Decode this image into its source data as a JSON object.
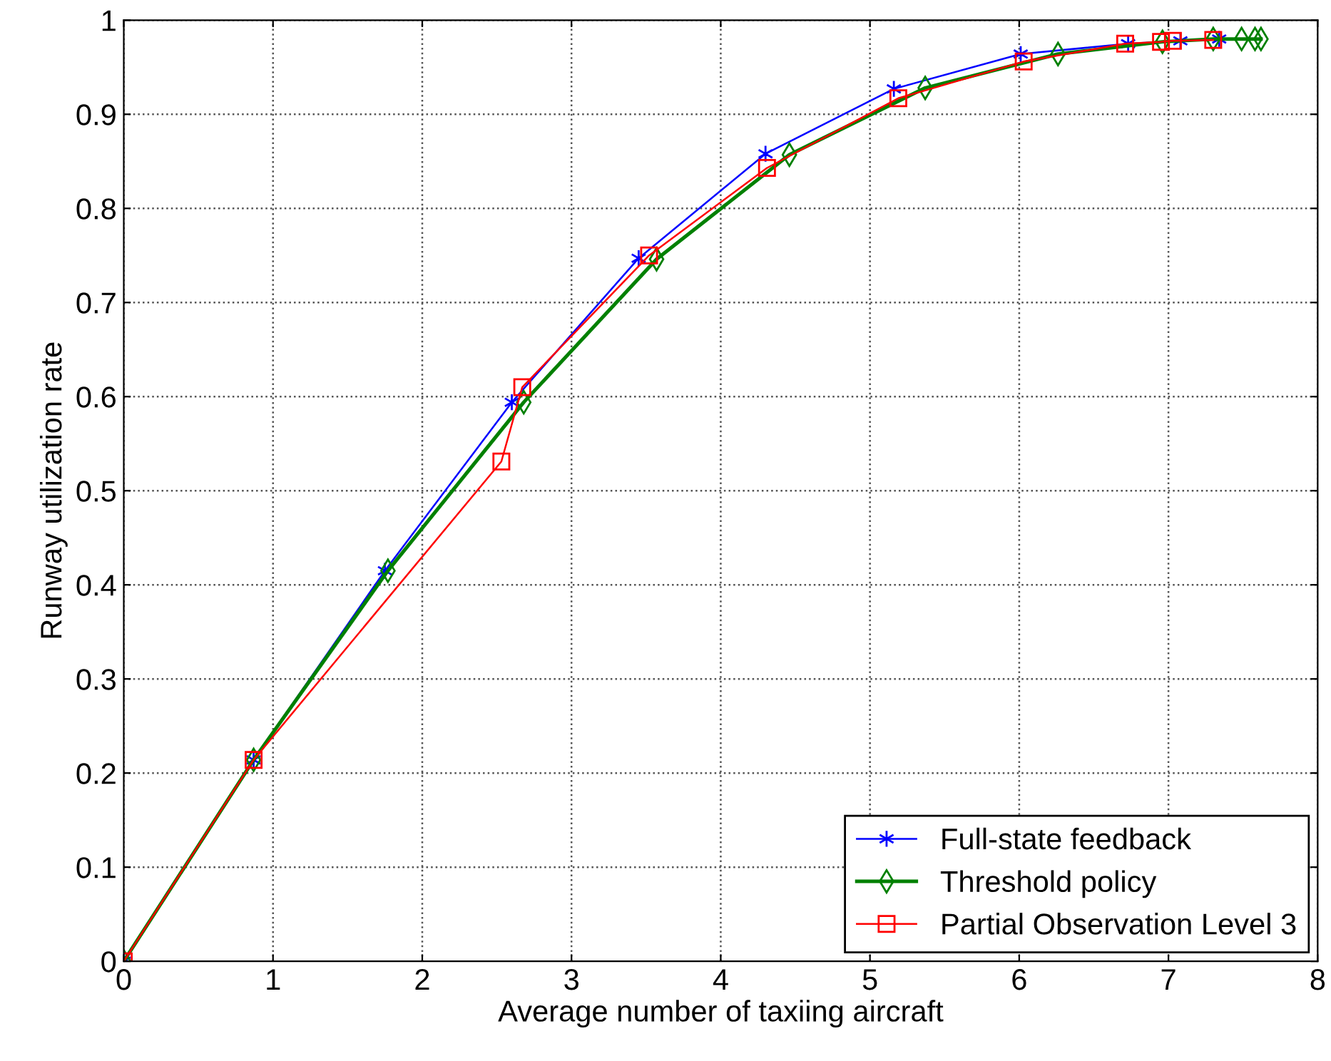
{
  "chart_data": {
    "type": "line",
    "xlabel": "Average number of taxiing aircraft",
    "ylabel": "Runway utilization rate",
    "xlim": [
      0,
      8
    ],
    "xticks": [
      0,
      1,
      2,
      3,
      4,
      5,
      6,
      7,
      8
    ],
    "ylim": [
      0,
      1
    ],
    "yticks": [
      0,
      0.1,
      0.2,
      0.3,
      0.4,
      0.5,
      0.6,
      0.7,
      0.8,
      0.9,
      1
    ],
    "grid": true,
    "legend": "bottom right",
    "series": [
      {
        "name": "Full-state feedback",
        "color": "#0000ff",
        "marker": "cross",
        "x": [
          0,
          0.87,
          1.75,
          2.6,
          3.45,
          4.3,
          5.16,
          6.01,
          6.73,
          7.08,
          7.34
        ],
        "values": [
          0,
          0.214,
          0.415,
          0.594,
          0.747,
          0.858,
          0.927,
          0.964,
          0.975,
          0.978,
          0.98
        ]
      },
      {
        "name": "Threshold policy",
        "color": "#008000",
        "marker": "diamond",
        "x": [
          0,
          0.87,
          1.77,
          2.68,
          3.57,
          4.46,
          5.37,
          6.26,
          6.96,
          7.3,
          7.49,
          7.58,
          7.62
        ],
        "values": [
          0,
          0.214,
          0.415,
          0.594,
          0.746,
          0.857,
          0.928,
          0.964,
          0.977,
          0.98,
          0.98,
          0.98,
          0.98
        ]
      },
      {
        "name": "Partial Observation Level 3",
        "color": "#ff0000",
        "marker": "square",
        "x": [
          0,
          0.87,
          2.53,
          2.67,
          3.52,
          4.31,
          5.19,
          6.03,
          6.71,
          6.95,
          7.03,
          7.3
        ],
        "values": [
          0,
          0.214,
          0.531,
          0.61,
          0.75,
          0.843,
          0.917,
          0.956,
          0.975,
          0.977,
          0.978,
          0.979
        ]
      }
    ]
  }
}
